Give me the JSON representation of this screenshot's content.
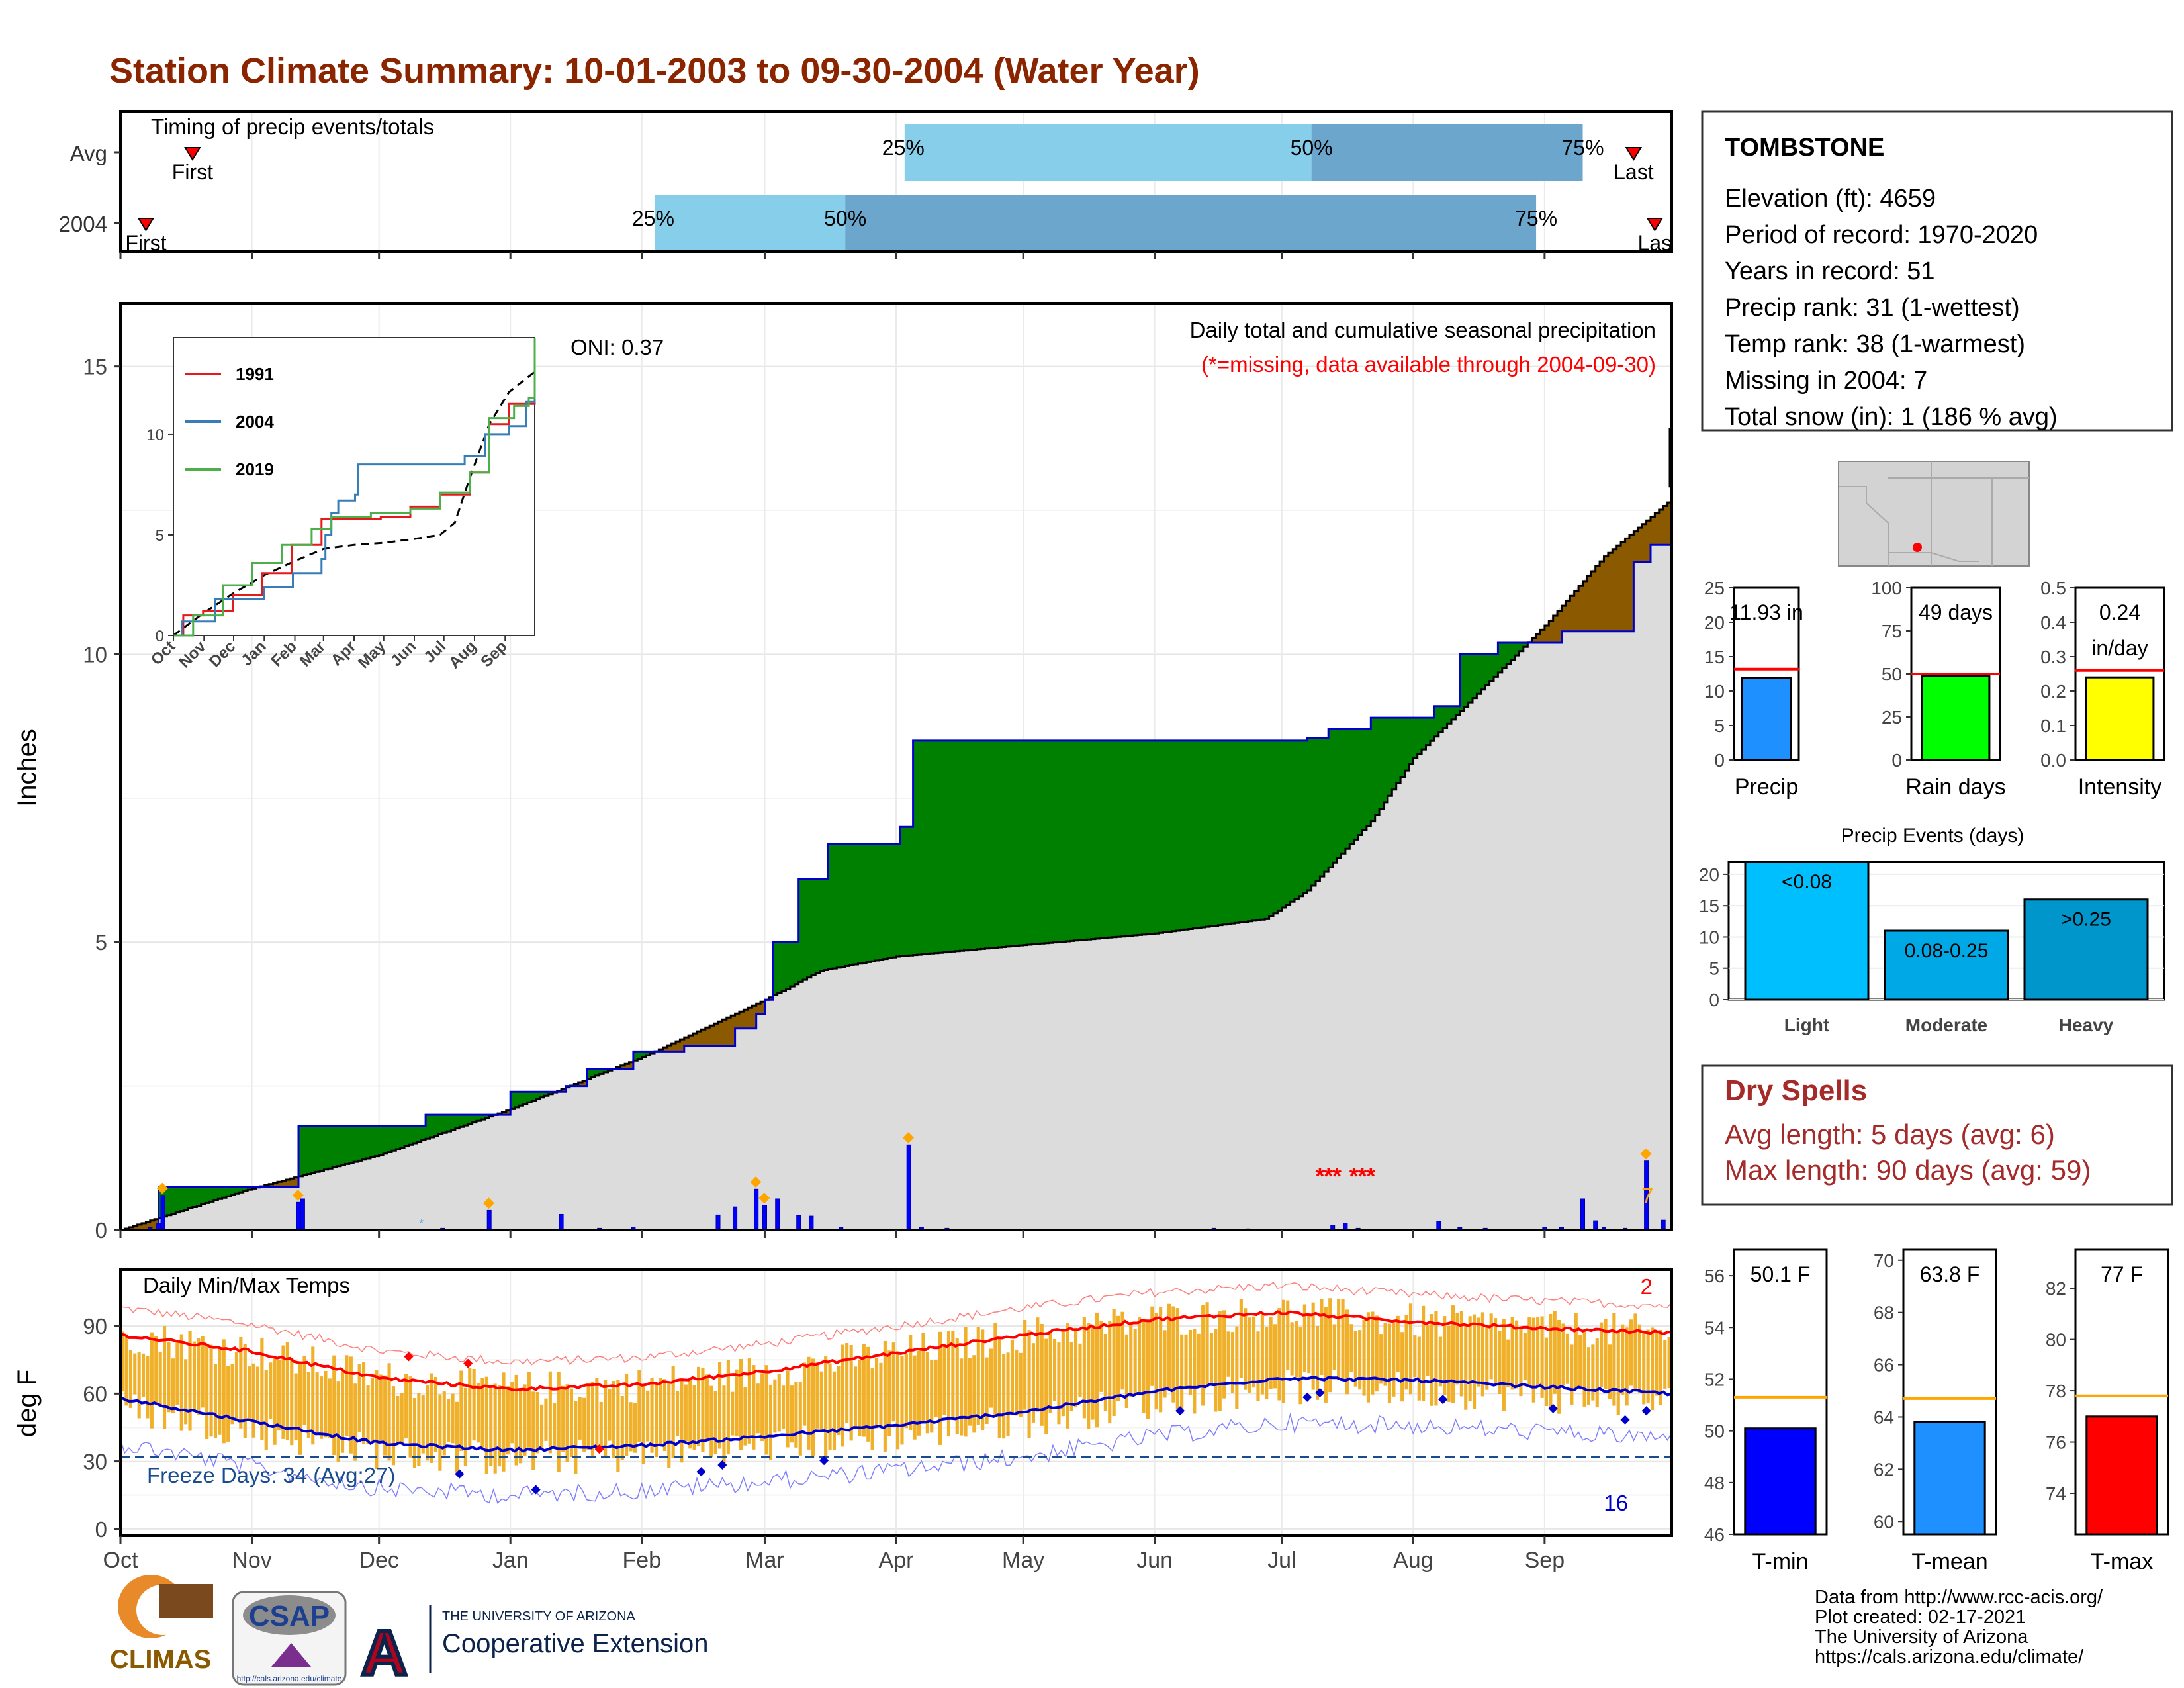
{
  "title": "Station Climate Summary: 10-01-2003 to 09-30-2004 (Water Year)",
  "colors": {
    "title": "#8b2500",
    "cum_fill": "#dcdcdc",
    "above": "#008000",
    "below": "#8b5a00",
    "year_line": "#0000cd",
    "precip_bar": "#0000ff",
    "event_marker": "#ffa500",
    "missing": "#ff0000",
    "temp_bar": "#f0b02a",
    "tmax_line": "#ff0000",
    "tmin_line": "#0000cd",
    "q_light": "#87ceeb",
    "q_dark": "#6ca6cd"
  },
  "months": [
    "Oct",
    "Nov",
    "Dec",
    "Jan",
    "Feb",
    "Mar",
    "Apr",
    "May",
    "Jun",
    "Jul",
    "Aug",
    "Sep"
  ],
  "timing": {
    "label": "Timing of precip events/totals",
    "rows": [
      {
        "label": "Avg",
        "first": "First",
        "last": "Last",
        "first_day": 17,
        "last_day": 357,
        "q25_day": 185,
        "q50_day": 281,
        "q75_day": 345,
        "q25": "25%",
        "q50": "50%",
        "q75": "75%"
      },
      {
        "label": "2004",
        "first": "First",
        "last": "Las",
        "first_day": 6,
        "last_day": 362,
        "q25_day": 126,
        "q50_day": 171,
        "q75_day": 334,
        "q25": "25%",
        "q50": "50%",
        "q75": "75%"
      }
    ]
  },
  "precip_panel": {
    "ylabel": "Inches",
    "title": "Daily total and cumulative seasonal precipitation",
    "subtitle": "(*=missing, data available through 2004-09-30)",
    "oni": "ONI: 0.37",
    "missing_count": "7",
    "y_ticks": [
      "0",
      "5",
      "10",
      "15"
    ]
  },
  "inset": {
    "legend": [
      {
        "name": "1991",
        "color": "#e41a1c"
      },
      {
        "name": "2004",
        "color": "#377eb8"
      },
      {
        "name": "2019",
        "color": "#4daf4a"
      }
    ],
    "y_ticks": [
      "0",
      "5",
      "10"
    ],
    "x_ticks": [
      "Oct",
      "Nov",
      "Dec",
      "Jan",
      "Feb",
      "Mar",
      "Apr",
      "May",
      "Jun",
      "Jul",
      "Aug",
      "Sep"
    ]
  },
  "temp_panel": {
    "ylabel": "deg F",
    "title": "Daily Min/Max Temps",
    "freeze": "Freeze Days: 34 (Avg:27)",
    "count_top": "2",
    "count_bottom": "16",
    "y_ticks": [
      "0",
      "30",
      "60",
      "90"
    ]
  },
  "station": {
    "name": "TOMBSTONE",
    "lines": [
      "Elevation (ft): 4659",
      "Period of record: 1970-2020",
      "Years in record: 51",
      "Precip rank: 31 (1-wettest)",
      "Temp rank: 38 (1-warmest)",
      "Missing in 2004: 7",
      "Total snow (in): 1 (186 % avg)"
    ]
  },
  "dry_spells": {
    "title": "Dry Spells",
    "avg_length": "Avg length: 5 days (avg: 6)",
    "max_length": "Max length: 90 days (avg: 59)"
  },
  "precip_events_title": "Precip Events (days)",
  "chart_data": [
    {
      "type": "line",
      "title": "Daily total and cumulative seasonal precipitation",
      "ylabel": "Inches",
      "ylim": [
        0,
        15
      ],
      "series": [
        {
          "name": "2004",
          "x": [
            "Oct 1",
            "Oct 10",
            "Nov 11",
            "Dec 12",
            "Jan 1",
            "Jan 21",
            "Feb 1",
            "Feb 12",
            "Mar 1",
            "Mar 2",
            "Mar 7",
            "Mar 15",
            "Apr 1",
            "Apr 4",
            "Jul 1",
            "Jul 25",
            "Aug 10",
            "Aug 15",
            "Sep 1",
            "Sep 18",
            "Sep 21",
            "Sep 28"
          ],
          "values": [
            0,
            0.75,
            1.8,
            2.0,
            2.4,
            2.8,
            3.1,
            3.5,
            4.0,
            5.0,
            6.1,
            6.7,
            7.0,
            8.5,
            8.5,
            8.9,
            10.0,
            10.2,
            10.4,
            11.6,
            11.9,
            11.93
          ]
        }
      ]
    },
    {
      "type": "bar",
      "title": "Precip",
      "categories": [
        "Precip"
      ],
      "values": [
        11.93
      ],
      "unit": "in",
      "avg": 13.2,
      "ylim": [
        0,
        25
      ],
      "label": "11.93 in"
    },
    {
      "type": "bar",
      "title": "Rain days",
      "categories": [
        "Rain days"
      ],
      "values": [
        49
      ],
      "avg": 50,
      "ylim": [
        0,
        100
      ],
      "label": "49 days"
    },
    {
      "type": "bar",
      "title": "Intensity",
      "categories": [
        "Intensity"
      ],
      "values": [
        0.24
      ],
      "avg": 0.26,
      "ylim": [
        0,
        0.5
      ],
      "label": "0.24 in/day"
    },
    {
      "type": "bar",
      "title": "Precip Events (days)",
      "categories": [
        "Light",
        "Moderate",
        "Heavy"
      ],
      "bar_labels": [
        "<0.08",
        "0.08-0.25",
        ">0.25"
      ],
      "values": [
        22,
        11,
        16
      ],
      "ylim": [
        0,
        22
      ]
    },
    {
      "type": "bar",
      "title": "T-min",
      "categories": [
        "T-min"
      ],
      "values": [
        50.1
      ],
      "avg": 51.3,
      "ylim": [
        46,
        57
      ],
      "label": "50.1 F"
    },
    {
      "type": "bar",
      "title": "T-mean",
      "categories": [
        "T-mean"
      ],
      "values": [
        63.8
      ],
      "avg": 64.7,
      "ylim": [
        59.5,
        70.4
      ],
      "label": "63.8 F"
    },
    {
      "type": "bar",
      "title": "T-max",
      "categories": [
        "T-max"
      ],
      "values": [
        77
      ],
      "avg": 77.8,
      "ylim": [
        72.4,
        83.5
      ],
      "label": "77 F"
    }
  ],
  "credits": [
    "Data from http://www.rcc-acis.org/",
    "Plot created: 02-17-2021",
    "The University of Arizona",
    "https://cals.arizona.edu/climate/"
  ],
  "logos": {
    "climas": "CLIMAS",
    "csap": "CSAP",
    "csap_url": "http://cals.arizona.edu/climate",
    "ua_small": "THE UNIVERSITY OF ARIZONA",
    "coop": "Cooperative Extension"
  }
}
